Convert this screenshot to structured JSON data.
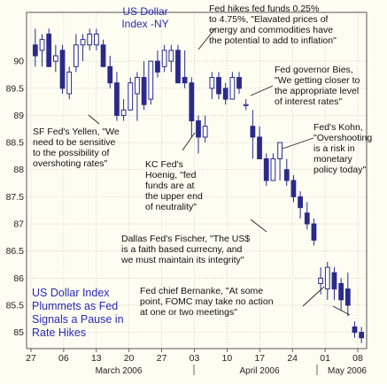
{
  "chart_data": {
    "type": "candlestick",
    "title": "US Dollar Index Plummets as Fed Signals a Pause in Rate Hikes",
    "series_label": "US Dollar Index -NY",
    "ylim": [
      84.7,
      90.9
    ],
    "y_ticks": [
      "85",
      "85.5",
      "86",
      "86.5",
      "87",
      "87.5",
      "88",
      "88.5",
      "89",
      "89.5",
      "90"
    ],
    "x_ticks": [
      "27",
      "06",
      "13",
      "20",
      "27",
      "03",
      "10",
      "17",
      "24",
      "01",
      "08"
    ],
    "month_labels": [
      "March 2006",
      "April 2006",
      "May 2006"
    ],
    "grid": true,
    "candles": [
      {
        "o": 90.3,
        "h": 90.6,
        "l": 89.9,
        "c": 90.1
      },
      {
        "o": 90.2,
        "h": 90.5,
        "l": 89.9,
        "c": 90.4
      },
      {
        "o": 90.5,
        "h": 90.6,
        "l": 89.9,
        "c": 89.9
      },
      {
        "o": 90.0,
        "h": 90.3,
        "l": 89.8,
        "c": 90.1
      },
      {
        "o": 90.2,
        "h": 90.3,
        "l": 89.4,
        "c": 89.5
      },
      {
        "o": 89.4,
        "h": 89.9,
        "l": 89.3,
        "c": 89.8
      },
      {
        "o": 89.9,
        "h": 90.5,
        "l": 89.8,
        "c": 90.3
      },
      {
        "o": 90.3,
        "h": 90.5,
        "l": 90.0,
        "c": 90.4
      },
      {
        "o": 90.3,
        "h": 90.6,
        "l": 90.2,
        "c": 90.5
      },
      {
        "o": 90.3,
        "h": 90.6,
        "l": 90.2,
        "c": 90.5
      },
      {
        "o": 90.3,
        "h": 90.4,
        "l": 89.9,
        "c": 89.9
      },
      {
        "o": 89.9,
        "h": 90.1,
        "l": 89.5,
        "c": 89.6
      },
      {
        "o": 89.6,
        "h": 89.8,
        "l": 88.9,
        "c": 89.0
      },
      {
        "o": 89.0,
        "h": 89.3,
        "l": 88.9,
        "c": 89.1
      },
      {
        "o": 89.1,
        "h": 89.7,
        "l": 89.1,
        "c": 89.6
      },
      {
        "o": 89.4,
        "h": 89.8,
        "l": 88.9,
        "c": 89.7
      },
      {
        "o": 89.7,
        "h": 90.0,
        "l": 89.1,
        "c": 89.2
      },
      {
        "o": 89.3,
        "h": 90.0,
        "l": 89.2,
        "c": 90.0
      },
      {
        "o": 90.0,
        "h": 90.2,
        "l": 89.7,
        "c": 89.8
      },
      {
        "o": 89.9,
        "h": 90.3,
        "l": 89.8,
        "c": 90.2
      },
      {
        "o": 90.0,
        "h": 90.3,
        "l": 89.8,
        "c": 90.2
      },
      {
        "o": 90.2,
        "h": 90.3,
        "l": 89.6,
        "c": 89.6
      },
      {
        "o": 89.7,
        "h": 90.2,
        "l": 89.5,
        "c": 89.6
      },
      {
        "o": 89.6,
        "h": 89.7,
        "l": 88.6,
        "c": 88.9
      },
      {
        "o": 88.9,
        "h": 89.0,
        "l": 88.3,
        "c": 88.6
      },
      {
        "o": 88.6,
        "h": 89.0,
        "l": 88.5,
        "c": 88.8
      },
      {
        "o": 89.5,
        "h": 89.8,
        "l": 89.3,
        "c": 89.7
      },
      {
        "o": 89.7,
        "h": 89.8,
        "l": 89.3,
        "c": 89.4
      },
      {
        "o": 89.5,
        "h": 89.6,
        "l": 89.2,
        "c": 89.3
      },
      {
        "o": 89.3,
        "h": 89.8,
        "l": 89.3,
        "c": 89.7
      },
      {
        "o": 89.7,
        "h": 89.8,
        "l": 89.4,
        "c": 89.5
      },
      {
        "o": 89.2,
        "h": 89.3,
        "l": 89.1,
        "c": 89.2
      },
      {
        "o": 88.8,
        "h": 89.1,
        "l": 88.2,
        "c": 88.6
      },
      {
        "o": 88.6,
        "h": 88.8,
        "l": 88.2,
        "c": 88.2
      },
      {
        "o": 88.2,
        "h": 88.3,
        "l": 87.7,
        "c": 87.8
      },
      {
        "o": 87.8,
        "h": 88.3,
        "l": 87.8,
        "c": 88.2
      },
      {
        "o": 88.2,
        "h": 88.5,
        "l": 87.8,
        "c": 88.5
      },
      {
        "o": 88.0,
        "h": 88.2,
        "l": 87.7,
        "c": 87.8
      },
      {
        "o": 87.8,
        "h": 87.9,
        "l": 87.4,
        "c": 87.5
      },
      {
        "o": 87.5,
        "h": 87.6,
        "l": 87.1,
        "c": 87.3
      },
      {
        "o": 87.2,
        "h": 87.4,
        "l": 86.9,
        "c": 87.0
      },
      {
        "o": 87.0,
        "h": 87.1,
        "l": 86.6,
        "c": 86.7
      },
      {
        "o": 85.9,
        "h": 86.2,
        "l": 85.7,
        "c": 86.0
      },
      {
        "o": 85.8,
        "h": 86.3,
        "l": 85.6,
        "c": 86.2
      },
      {
        "o": 86.1,
        "h": 86.2,
        "l": 85.6,
        "c": 85.8
      },
      {
        "o": 85.9,
        "h": 86.0,
        "l": 85.4,
        "c": 85.6
      },
      {
        "o": 85.8,
        "h": 86.1,
        "l": 85.3,
        "c": 85.5
      },
      {
        "o": 85.1,
        "h": 85.2,
        "l": 84.9,
        "c": 85.0
      },
      {
        "o": 85.0,
        "h": 85.1,
        "l": 84.8,
        "c": 84.9
      }
    ],
    "annotations": [
      "Fed hikes fed funds 0.25%\nto 4.75%, \"Elavated prices of\nenergy and commodities have\nthe potential to add to inflation\"",
      "Fed governor Bies,\n\"We getting closer to\nthe appropriate level\nof interest rates\"",
      "SF Fed's Yellen, \"We\nneed to be sensitive\nto the possibility of\novershoting rates\"",
      "KC Fed's\nHoenig, \"fed\nfunds are at\nthe upper end\nof neutrality\"",
      "Fed's Kohn,\n\"Overshooting\nis a risk in\nmonetary\npolicy today\"",
      "Dallas Fed's Fischer, \"The US$\nis a faith based currecny, and\nwe must maintain its integrity\"",
      "Fed chief Bernanke, \"At some\npoint, FOMC may take no action\nat one or two meetings\""
    ]
  },
  "colors": {
    "background": "#fdfdf2",
    "candle": "#2a2a8c",
    "grid": "#b8b8b8",
    "title": "#2a2ab8"
  }
}
